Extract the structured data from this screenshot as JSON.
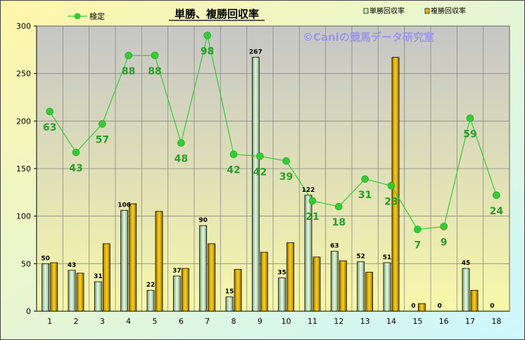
{
  "chart_data": {
    "type": "bar",
    "title": "単勝、複勝回収率",
    "watermark": "©Caniの競馬データ研究室",
    "categories": [
      "1",
      "2",
      "3",
      "4",
      "5",
      "6",
      "7",
      "8",
      "9",
      "10",
      "11",
      "12",
      "13",
      "14",
      "15",
      "16",
      "17",
      "18"
    ],
    "ylim": [
      0,
      300
    ],
    "yticks": [
      0,
      50,
      100,
      150,
      200,
      250,
      300
    ],
    "grid": true,
    "legend_position": "top",
    "series": [
      {
        "name": "単勝回収率",
        "type": "bar",
        "color": "#c8ecc0",
        "values": [
          50,
          43,
          31,
          106,
          22,
          37,
          90,
          15,
          267,
          35,
          122,
          63,
          52,
          51,
          0,
          0,
          45,
          0
        ]
      },
      {
        "name": "複勝回収率",
        "type": "bar",
        "color": "#e6b800",
        "values": [
          51,
          40,
          71,
          113,
          105,
          45,
          71,
          44,
          62,
          72,
          57,
          53,
          41,
          267,
          8,
          0,
          22,
          0
        ]
      },
      {
        "name": "検定",
        "type": "line",
        "color": "#33cc33",
        "values": [
          210,
          167,
          197,
          269,
          269,
          177,
          290,
          165,
          163,
          158,
          116,
          110,
          139,
          132,
          86,
          89,
          203,
          122
        ],
        "labels": [
          "63",
          "43",
          "57",
          "88",
          "88",
          "48",
          "98",
          "42",
          "42",
          "39",
          "21",
          "18",
          "31",
          "23",
          "7",
          "9",
          "59",
          "24"
        ]
      }
    ]
  }
}
